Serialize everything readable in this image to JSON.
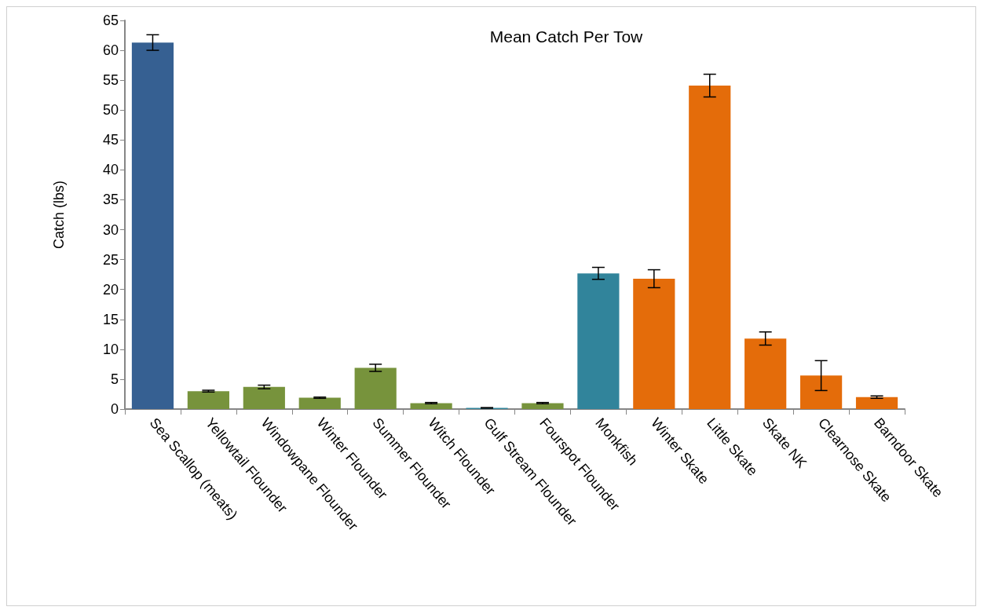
{
  "chart_data": {
    "type": "bar",
    "title": "Mean Catch Per Tow",
    "ylabel": "Catch (lbs)",
    "categories": [
      "Sea Scallop (meats)",
      "Yellowtail Flounder",
      "Windowpane Flounder",
      "Winter Flounder",
      "Summer Flounder",
      "Witch Flounder",
      "Gulf Stream Flounder",
      "Fourspot Flounder",
      "Monkfish",
      "Winter Skate",
      "Little Skate",
      "Skate NK",
      "Clearnose Skate",
      "Barndoor Skate"
    ],
    "values": [
      61.3,
      3.0,
      3.7,
      1.9,
      6.9,
      1.0,
      0.2,
      1.0,
      22.7,
      21.8,
      54.1,
      11.8,
      5.6,
      2.0
    ],
    "errors": [
      1.3,
      0.15,
      0.3,
      0.1,
      0.6,
      0.1,
      0.05,
      0.1,
      1.0,
      1.5,
      1.9,
      1.1,
      2.5,
      0.2
    ],
    "colors": [
      "#366092",
      "#77933c",
      "#77933c",
      "#77933c",
      "#77933c",
      "#77933c",
      "#31849b",
      "#77933c",
      "#31849b",
      "#e46c0a",
      "#e46c0a",
      "#e46c0a",
      "#e46c0a",
      "#e46c0a"
    ],
    "ylim": [
      0,
      65
    ],
    "yticks": [
      0,
      5,
      10,
      15,
      20,
      25,
      30,
      35,
      40,
      45,
      50,
      55,
      60,
      65
    ],
    "grid": false
  }
}
